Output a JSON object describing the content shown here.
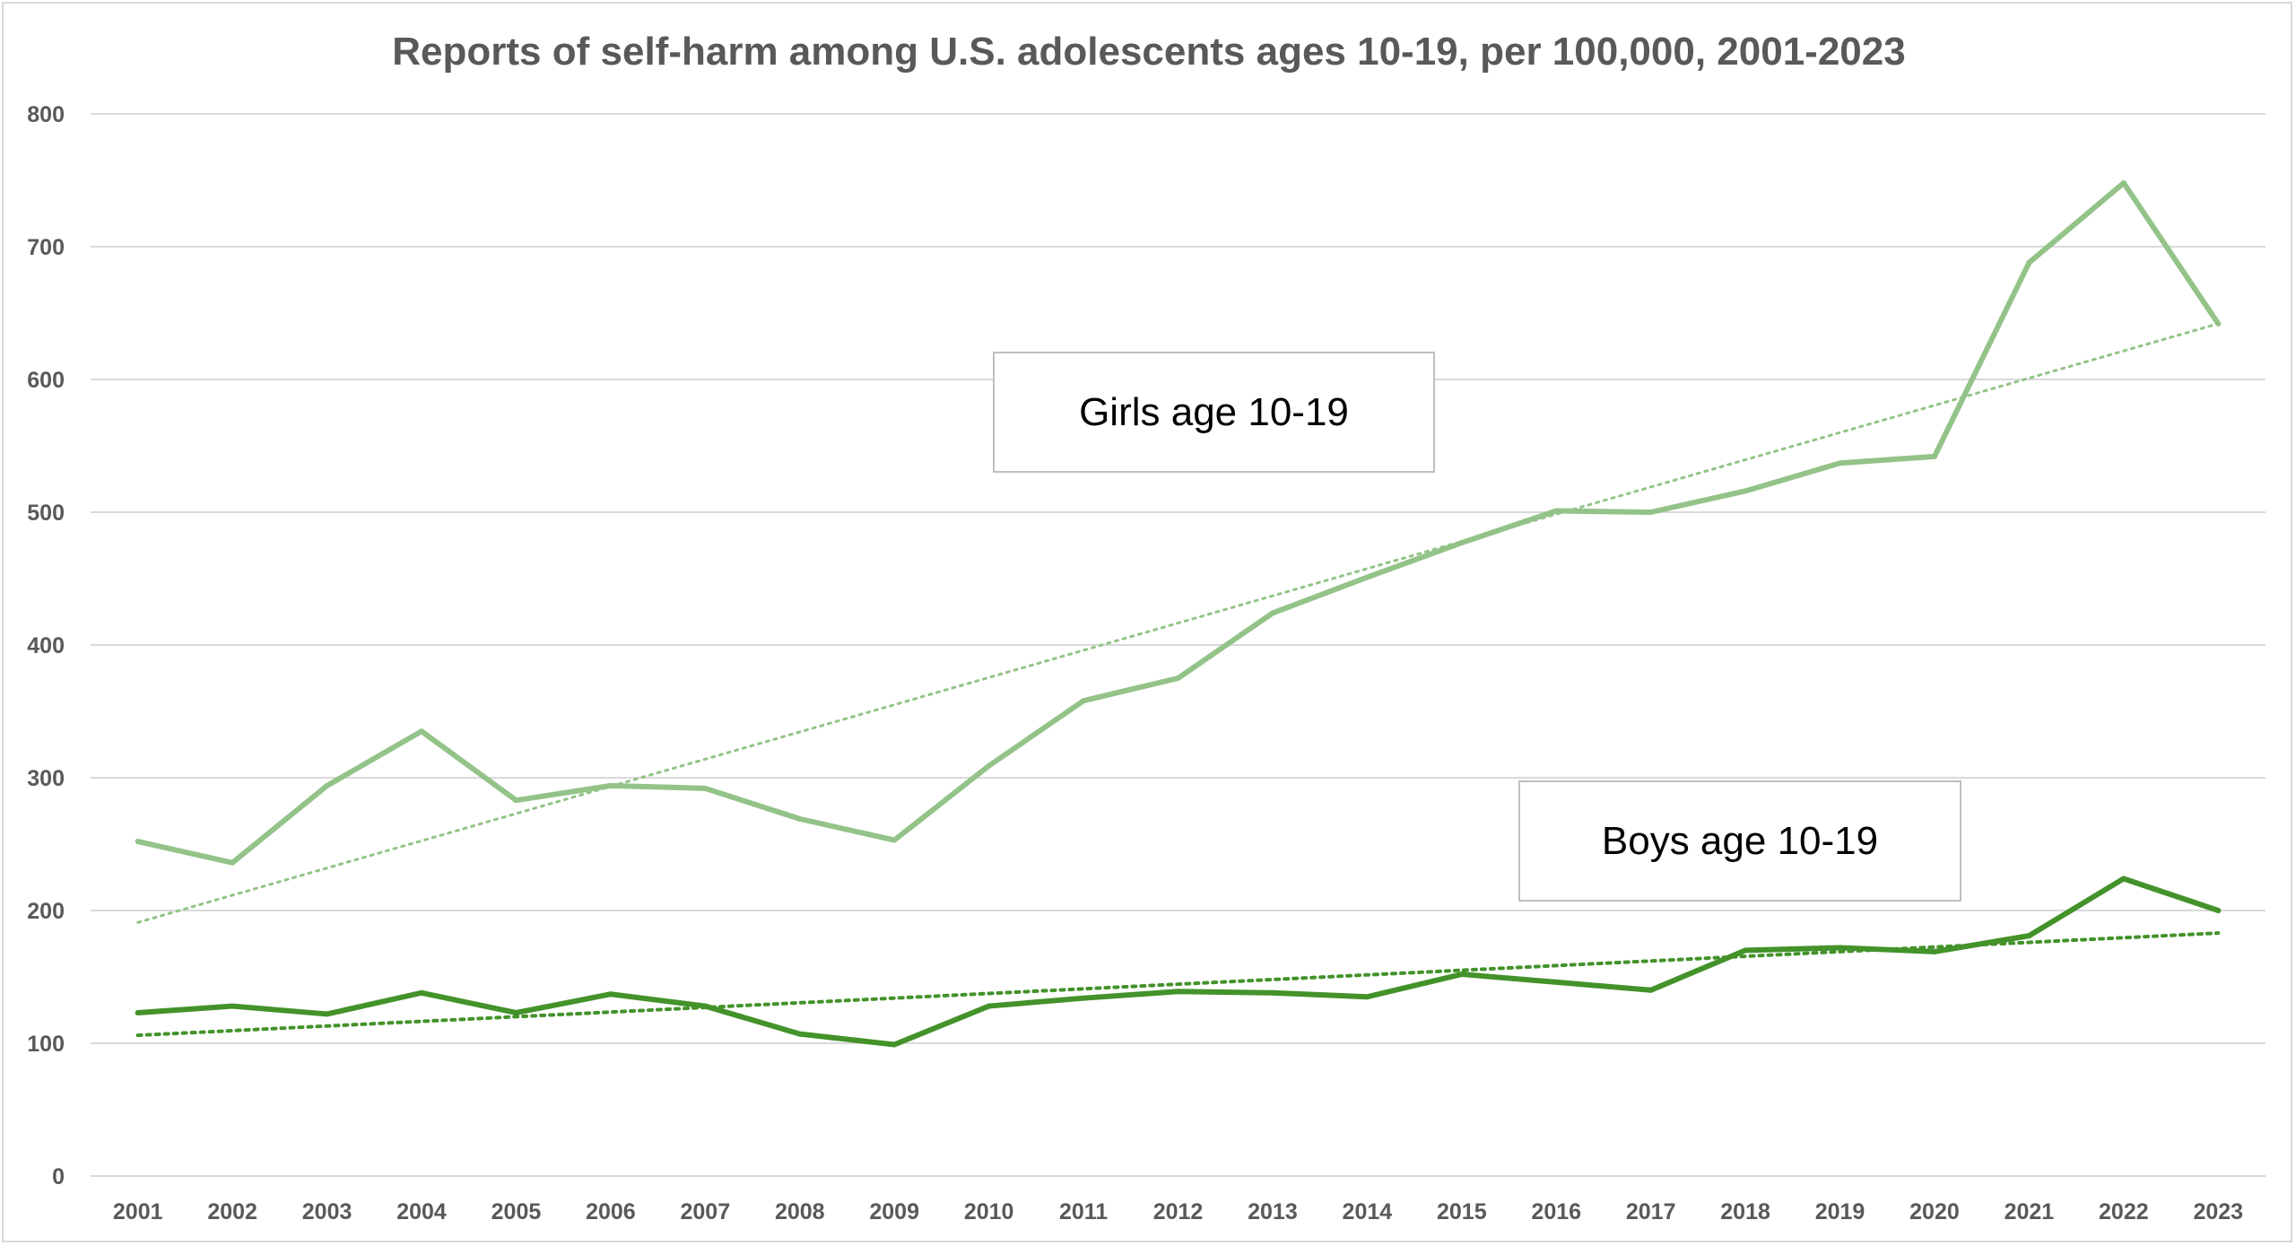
{
  "chart_data": {
    "type": "line",
    "title": "Reports of self-harm among U.S. adolescents ages 10-19, per 100,000, 2001-2023",
    "xlabel": "",
    "ylabel": "",
    "ylim": [
      0,
      800
    ],
    "yticks": [
      0,
      100,
      200,
      300,
      400,
      500,
      600,
      700,
      800
    ],
    "grid": true,
    "categories": [
      "2001",
      "2002",
      "2003",
      "2004",
      "2005",
      "2006",
      "2007",
      "2008",
      "2009",
      "2010",
      "2011",
      "2012",
      "2013",
      "2014",
      "2015",
      "2016",
      "2017",
      "2018",
      "2019",
      "2020",
      "2021",
      "2022",
      "2023"
    ],
    "series": [
      {
        "name": "Girls age 10-19",
        "color": "#93c388",
        "values": [
          252,
          236,
          294,
          335,
          283,
          294,
          292,
          269,
          253,
          309,
          358,
          375,
          424,
          451,
          477,
          501,
          500,
          516,
          537,
          542,
          688,
          748,
          642
        ],
        "trendline": {
          "type": "linear",
          "start": 191,
          "end": 642
        }
      },
      {
        "name": "Boys age 10-19",
        "color": "#43922a",
        "values": [
          123,
          128,
          122,
          138,
          123,
          137,
          128,
          107,
          99,
          128,
          134,
          139,
          138,
          135,
          152,
          146,
          140,
          170,
          172,
          169,
          181,
          224,
          200
        ],
        "trendline": {
          "type": "linear",
          "start": 106,
          "end": 183
        }
      }
    ],
    "annotations": [
      "Girls age 10-19",
      "Boys age 10-19"
    ]
  }
}
